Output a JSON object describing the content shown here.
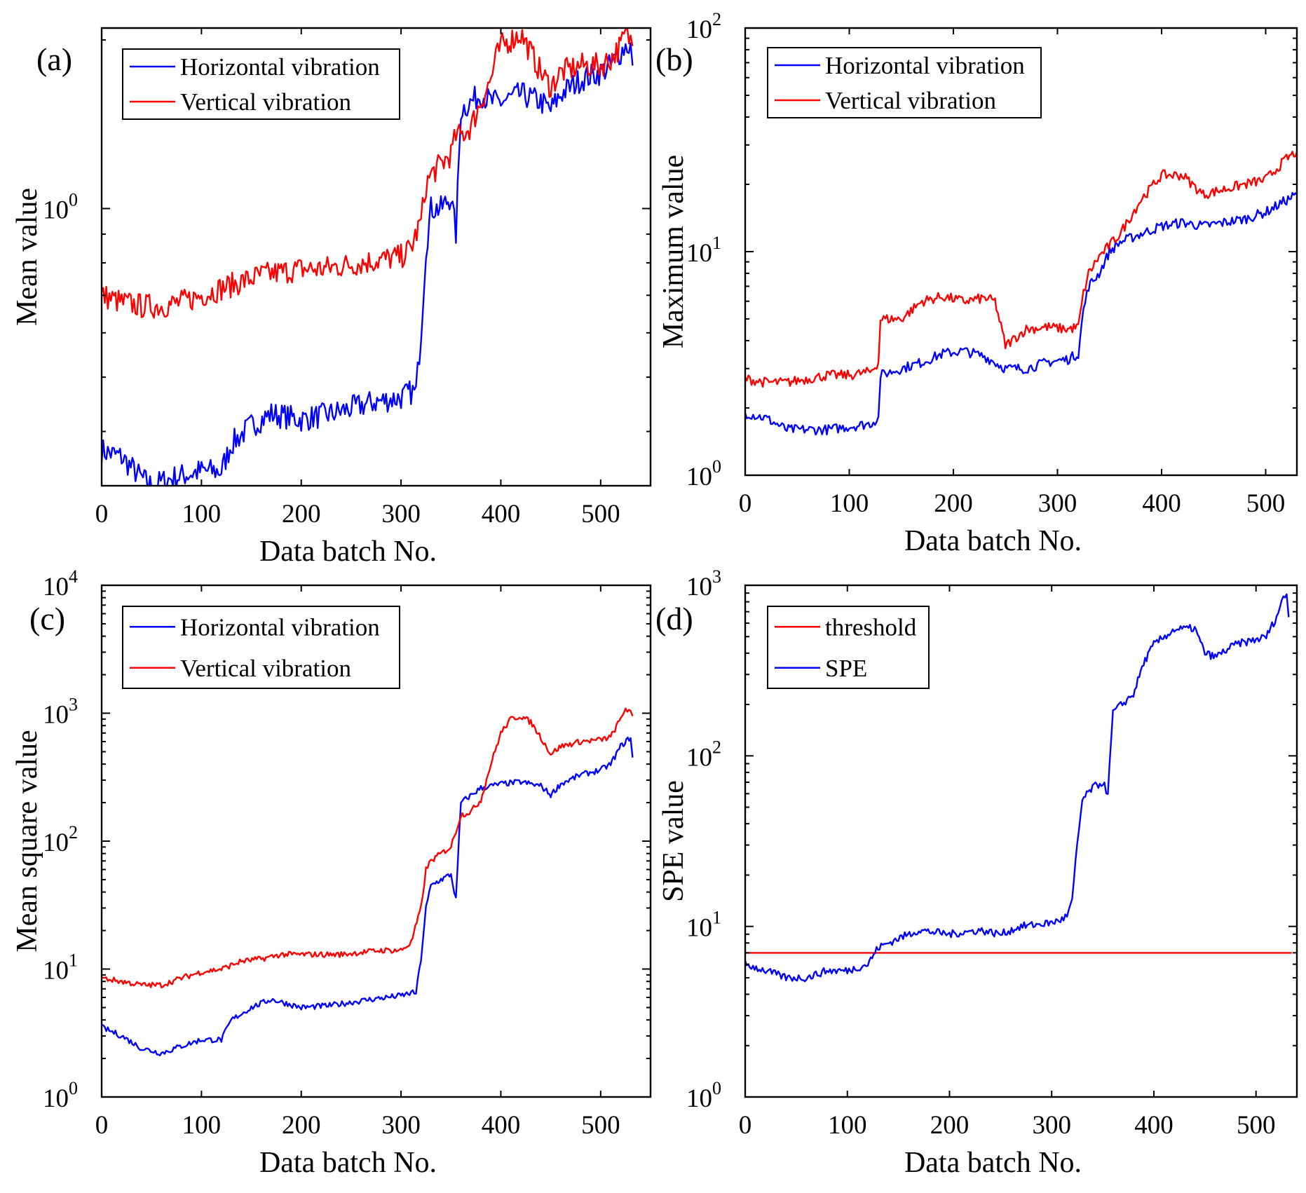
{
  "chart_data": [
    {
      "panel": "(a)",
      "type": "line",
      "xlabel": "Data batch No.",
      "ylabel": "Mean value",
      "xlim": [
        0,
        550
      ],
      "xticks": [
        0,
        100,
        200,
        300,
        400,
        500
      ],
      "ylim": [
        0.32,
        2.1
      ],
      "yscale": "log",
      "yticks": [
        {
          "value": 1,
          "base": "10",
          "exp": "0"
        }
      ],
      "legend": "top-left",
      "series": [
        {
          "name": "Horizontal vibration",
          "color": "#0000ff",
          "x": [
            0,
            20,
            40,
            50,
            70,
            100,
            120,
            130,
            150,
            170,
            200,
            230,
            250,
            270,
            300,
            310,
            315,
            320,
            325,
            330,
            340,
            350,
            355,
            360,
            380,
            390,
            400,
            420,
            440,
            450,
            460,
            480,
            500,
            510,
            520,
            525,
            530,
            532
          ],
          "y": [
            0.37,
            0.36,
            0.33,
            0.32,
            0.33,
            0.34,
            0.34,
            0.38,
            0.41,
            0.43,
            0.42,
            0.43,
            0.44,
            0.45,
            0.46,
            0.47,
            0.47,
            0.6,
            0.85,
            1.0,
            1.0,
            1.05,
            0.9,
            1.5,
            1.6,
            1.55,
            1.55,
            1.6,
            1.55,
            1.5,
            1.6,
            1.7,
            1.75,
            1.8,
            1.9,
            1.95,
            1.95,
            1.8
          ]
        },
        {
          "name": "Vertical vibration",
          "color": "#ff0000",
          "x": [
            0,
            20,
            40,
            60,
            80,
            100,
            120,
            140,
            160,
            180,
            200,
            220,
            240,
            260,
            280,
            300,
            310,
            320,
            325,
            330,
            340,
            350,
            355,
            360,
            370,
            380,
            390,
            395,
            400,
            410,
            420,
            430,
            440,
            450,
            460,
            480,
            500,
            510,
            520,
            525,
            530,
            532
          ],
          "y": [
            0.7,
            0.68,
            0.67,
            0.67,
            0.68,
            0.7,
            0.72,
            0.74,
            0.76,
            0.77,
            0.78,
            0.78,
            0.79,
            0.8,
            0.81,
            0.82,
            0.85,
            0.95,
            1.1,
            1.15,
            1.2,
            1.25,
            1.35,
            1.35,
            1.4,
            1.55,
            1.7,
            1.85,
            1.95,
            2.0,
            2.05,
            1.9,
            1.75,
            1.65,
            1.75,
            1.8,
            1.8,
            1.85,
            1.95,
            2.05,
            2.0,
            1.95
          ]
        }
      ]
    },
    {
      "panel": "(b)",
      "type": "line",
      "xlabel": "Data batch No.",
      "ylabel": "Maximum value",
      "xlim": [
        0,
        530
      ],
      "xticks": [
        0,
        100,
        200,
        300,
        400,
        500
      ],
      "ylim": [
        1,
        100
      ],
      "yscale": "log",
      "yticks": [
        {
          "value": 1,
          "base": "10",
          "exp": "0"
        },
        {
          "value": 10,
          "base": "10",
          "exp": "1"
        },
        {
          "value": 100,
          "base": "10",
          "exp": "2"
        }
      ],
      "legend": "top-left",
      "series": [
        {
          "name": "Horizontal vibration",
          "color": "#0000ff",
          "x": [
            0,
            20,
            40,
            60,
            80,
            100,
            120,
            128,
            130,
            150,
            170,
            190,
            210,
            230,
            250,
            270,
            290,
            310,
            320,
            325,
            330,
            340,
            350,
            360,
            380,
            400,
            420,
            440,
            460,
            480,
            500,
            520,
            530
          ],
          "y": [
            1.9,
            1.8,
            1.6,
            1.6,
            1.6,
            1.65,
            1.7,
            1.8,
            2.8,
            3.0,
            3.2,
            3.5,
            3.6,
            3.4,
            3.0,
            3.0,
            3.2,
            3.3,
            3.5,
            5.5,
            7.0,
            8.0,
            10.0,
            11.0,
            12.0,
            13.0,
            13.5,
            13.0,
            13.5,
            14.0,
            15.0,
            17.0,
            18.0
          ]
        },
        {
          "name": "Vertical vibration",
          "color": "#ff0000",
          "x": [
            0,
            20,
            40,
            60,
            80,
            100,
            120,
            128,
            130,
            150,
            170,
            190,
            210,
            230,
            240,
            250,
            270,
            290,
            310,
            320,
            325,
            330,
            340,
            360,
            380,
            400,
            420,
            440,
            460,
            480,
            500,
            520,
            530
          ],
          "y": [
            2.7,
            2.6,
            2.6,
            2.7,
            2.8,
            2.8,
            2.9,
            3.2,
            5.0,
            5.0,
            6.0,
            6.3,
            6.0,
            6.2,
            6.0,
            3.8,
            4.5,
            4.6,
            4.5,
            4.6,
            6.5,
            8.0,
            9.5,
            12.0,
            17.0,
            22.0,
            22.0,
            18.0,
            19.0,
            20.0,
            21.0,
            26.0,
            28.0
          ]
        }
      ]
    },
    {
      "panel": "(c)",
      "type": "line",
      "xlabel": "Data batch No.",
      "ylabel": "Mean square value",
      "xlim": [
        0,
        550
      ],
      "xticks": [
        0,
        100,
        200,
        300,
        400,
        500
      ],
      "ylim": [
        1,
        10000
      ],
      "yscale": "log",
      "yticks": [
        {
          "value": 1,
          "base": "10",
          "exp": "0"
        },
        {
          "value": 10,
          "base": "10",
          "exp": "1"
        },
        {
          "value": 100,
          "base": "10",
          "exp": "2"
        },
        {
          "value": 1000,
          "base": "10",
          "exp": "3"
        },
        {
          "value": 10000,
          "base": "10",
          "exp": "4"
        }
      ],
      "legend": "top-left",
      "series": [
        {
          "name": "Horizontal vibration",
          "color": "#0000ff",
          "x": [
            0,
            20,
            40,
            60,
            80,
            100,
            120,
            130,
            150,
            170,
            200,
            230,
            250,
            270,
            300,
            310,
            315,
            320,
            325,
            330,
            340,
            350,
            355,
            360,
            380,
            400,
            420,
            440,
            450,
            460,
            480,
            500,
            510,
            520,
            530,
            532
          ],
          "y": [
            3.5,
            3.0,
            2.4,
            2.2,
            2.5,
            2.8,
            2.8,
            4.0,
            5.0,
            5.8,
            5.0,
            5.2,
            5.5,
            5.8,
            6.2,
            6.5,
            6.5,
            12.0,
            30.0,
            45.0,
            50.0,
            55.0,
            35.0,
            200.0,
            260.0,
            280.0,
            290.0,
            270.0,
            230.0,
            280.0,
            330.0,
            360.0,
            400.0,
            550.0,
            650.0,
            450.0
          ]
        },
        {
          "name": "Vertical vibration",
          "color": "#ff0000",
          "x": [
            0,
            20,
            40,
            60,
            80,
            100,
            120,
            140,
            160,
            180,
            200,
            220,
            240,
            260,
            280,
            300,
            310,
            320,
            325,
            330,
            340,
            350,
            355,
            360,
            370,
            380,
            390,
            400,
            410,
            420,
            430,
            440,
            450,
            460,
            480,
            500,
            510,
            520,
            525,
            530,
            532
          ],
          "y": [
            8.5,
            8.0,
            7.5,
            7.5,
            8.5,
            9.5,
            10.0,
            11.5,
            12.0,
            13.0,
            13.0,
            13.0,
            13.0,
            13.5,
            14.0,
            14.0,
            16.0,
            30.0,
            60.0,
            70.0,
            80.0,
            90.0,
            120.0,
            160.0,
            170.0,
            210.0,
            400.0,
            700.0,
            900.0,
            950.0,
            850.0,
            650.0,
            480.0,
            550.0,
            600.0,
            620.0,
            650.0,
            900.0,
            1100.0,
            1000.0,
            950.0
          ]
        }
      ]
    },
    {
      "panel": "(d)",
      "type": "line",
      "xlabel": "Data batch No.",
      "ylabel": "SPE value",
      "xlim": [
        0,
        540
      ],
      "xticks": [
        0,
        100,
        200,
        300,
        400,
        500
      ],
      "ylim": [
        1,
        1000
      ],
      "yscale": "log",
      "yticks": [
        {
          "value": 1,
          "base": "10",
          "exp": "0"
        },
        {
          "value": 10,
          "base": "10",
          "exp": "1"
        },
        {
          "value": 100,
          "base": "10",
          "exp": "2"
        },
        {
          "value": 1000,
          "base": "10",
          "exp": "3"
        }
      ],
      "legend": "top-left",
      "series": [
        {
          "name": "threshold",
          "color": "#ff0000",
          "x": [
            0,
            535
          ],
          "y": [
            7.0,
            7.0
          ]
        },
        {
          "name": "SPE",
          "color": "#0000ff",
          "x": [
            0,
            20,
            40,
            60,
            80,
            100,
            120,
            130,
            150,
            170,
            200,
            230,
            250,
            270,
            300,
            310,
            315,
            320,
            325,
            330,
            340,
            350,
            355,
            360,
            380,
            390,
            400,
            420,
            440,
            450,
            460,
            480,
            500,
            510,
            520,
            525,
            530,
            532
          ],
          "y": [
            6.0,
            5.5,
            5.0,
            5.0,
            5.5,
            5.5,
            6.0,
            7.5,
            8.5,
            9.5,
            9.0,
            9.5,
            9.0,
            10.0,
            10.5,
            11.0,
            11.5,
            14.0,
            30.0,
            55.0,
            65.0,
            70.0,
            60.0,
            180.0,
            230.0,
            350.0,
            450.0,
            550.0,
            560.0,
            400.0,
            380.0,
            450.0,
            480.0,
            500.0,
            650.0,
            800.0,
            900.0,
            650.0
          ]
        }
      ]
    }
  ]
}
